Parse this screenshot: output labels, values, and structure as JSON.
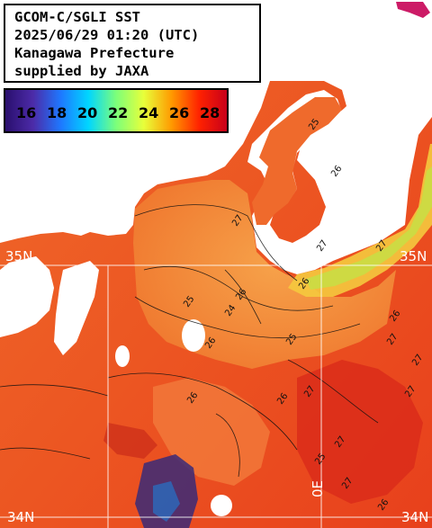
{
  "info": {
    "line1": "GCOM-C/SGLI SST",
    "line2": "2025/06/29 01:20 (UTC)",
    "line3": "Kanagawa Prefecture",
    "line4": "supplied by JAXA"
  },
  "legend": {
    "labels": [
      "16",
      "18",
      "20",
      "22",
      "24",
      "26",
      "28"
    ],
    "colors": [
      "#2a0f6e",
      "#4c2ba8",
      "#1e78ff",
      "#00d6ff",
      "#7cff7a",
      "#e8ff3a",
      "#ff9a00",
      "#ff2200",
      "#c8001a"
    ]
  },
  "grid": {
    "lat_top": "35N",
    "lat_bottom": "34N",
    "lon_bottom": "0E"
  },
  "contours": [
    "25",
    "26",
    "27",
    "25",
    "26",
    "26",
    "27",
    "26",
    "25",
    "24",
    "27",
    "26",
    "27",
    "26",
    "27",
    "26",
    "25",
    "27",
    "26",
    "27",
    "27",
    "27"
  ],
  "colors": {
    "land": "#ffffff",
    "sea_base": "#f0622a",
    "sea_warm": "#e8431f",
    "sea_cool": "#f5823a",
    "coastal": "#f7c23a",
    "coastal_green": "#c8e040",
    "grid": "#ffffff",
    "contour": "#111111"
  }
}
